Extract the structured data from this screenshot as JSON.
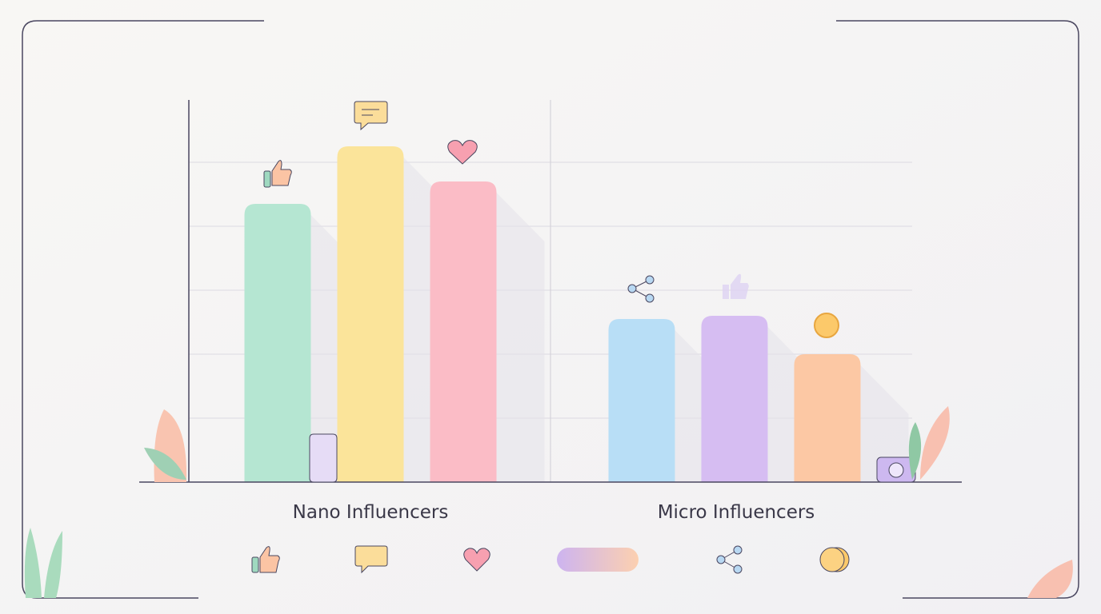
{
  "chart_data": {
    "type": "bar",
    "categories": [
      "Nano Influencers",
      "Micro Influencers"
    ],
    "values": [
      [
        4.35,
        5.25,
        4.7
      ],
      [
        2.55,
        2.6,
        2.0
      ]
    ],
    "colors": [
      [
        "#b5e6d2",
        "#fbe49a",
        "#fbbcc6"
      ],
      [
        "#b8def6",
        "#d6bdf2",
        "#fcc8a4"
      ]
    ],
    "ylim": [
      0,
      6
    ],
    "yticks": [
      1,
      2,
      3,
      4,
      5
    ],
    "grid": true
  }
}
